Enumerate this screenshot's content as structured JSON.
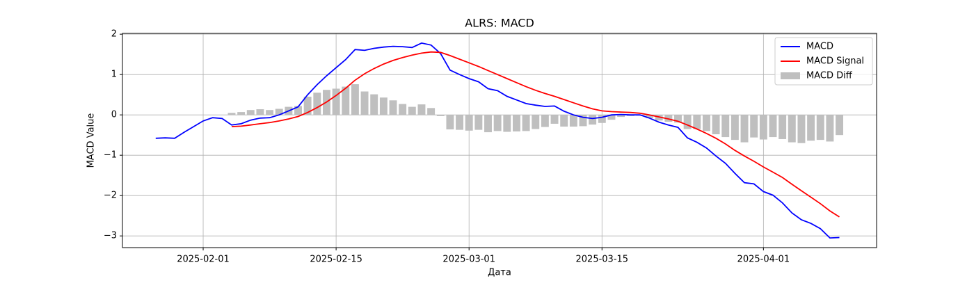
{
  "chart_data": {
    "type": "line",
    "title": "ALRS: MACD",
    "xlabel": "Дата",
    "ylabel": "MACD Value",
    "x": [
      "2025-01-27",
      "2025-01-28",
      "2025-01-29",
      "2025-01-30",
      "2025-01-31",
      "2025-02-01",
      "2025-02-02",
      "2025-02-03",
      "2025-02-04",
      "2025-02-05",
      "2025-02-06",
      "2025-02-07",
      "2025-02-08",
      "2025-02-09",
      "2025-02-10",
      "2025-02-11",
      "2025-02-12",
      "2025-02-13",
      "2025-02-14",
      "2025-02-15",
      "2025-02-16",
      "2025-02-17",
      "2025-02-18",
      "2025-02-19",
      "2025-02-20",
      "2025-02-21",
      "2025-02-22",
      "2025-02-23",
      "2025-02-24",
      "2025-02-25",
      "2025-02-26",
      "2025-02-27",
      "2025-02-28",
      "2025-03-01",
      "2025-03-02",
      "2025-03-03",
      "2025-03-04",
      "2025-03-05",
      "2025-03-06",
      "2025-03-07",
      "2025-03-08",
      "2025-03-09",
      "2025-03-10",
      "2025-03-11",
      "2025-03-12",
      "2025-03-13",
      "2025-03-14",
      "2025-03-15",
      "2025-03-16",
      "2025-03-17",
      "2025-03-18",
      "2025-03-19",
      "2025-03-20",
      "2025-03-21",
      "2025-03-22",
      "2025-03-23",
      "2025-03-24",
      "2025-03-25",
      "2025-03-26",
      "2025-03-27",
      "2025-03-28",
      "2025-03-29",
      "2025-03-30",
      "2025-03-31",
      "2025-04-01",
      "2025-04-02",
      "2025-04-03",
      "2025-04-04",
      "2025-04-05",
      "2025-04-06",
      "2025-04-07",
      "2025-04-08",
      "2025-04-09"
    ],
    "series": [
      {
        "name": "MACD",
        "type": "line",
        "color": "#0000ff",
        "values": [
          -0.58,
          -0.57,
          -0.58,
          -0.43,
          -0.29,
          -0.15,
          -0.07,
          -0.09,
          -0.25,
          -0.22,
          -0.13,
          -0.08,
          -0.07,
          0.0,
          0.1,
          0.2,
          0.5,
          0.75,
          0.97,
          1.17,
          1.37,
          1.62,
          1.6,
          1.65,
          1.68,
          1.7,
          1.69,
          1.67,
          1.78,
          1.73,
          1.52,
          1.11,
          1.0,
          0.9,
          0.82,
          0.65,
          0.6,
          0.46,
          0.37,
          0.28,
          0.24,
          0.21,
          0.22,
          0.09,
          0.0,
          -0.06,
          -0.09,
          -0.06,
          0.0,
          0.01,
          0.0,
          0.0,
          -0.08,
          -0.18,
          -0.25,
          -0.31,
          -0.57,
          -0.68,
          -0.82,
          -1.02,
          -1.2,
          -1.45,
          -1.68,
          -1.71,
          -1.9,
          -1.99,
          -2.18,
          -2.43,
          -2.6,
          -2.69,
          -2.82,
          -3.05,
          -3.04
        ]
      },
      {
        "name": "MACD Signal",
        "type": "line",
        "color": "#ff0000",
        "values": [
          null,
          null,
          null,
          null,
          null,
          null,
          null,
          null,
          -0.29,
          -0.28,
          -0.25,
          -0.22,
          -0.19,
          -0.15,
          -0.1,
          -0.04,
          0.06,
          0.18,
          0.32,
          0.48,
          0.66,
          0.86,
          1.02,
          1.15,
          1.26,
          1.35,
          1.42,
          1.48,
          1.53,
          1.56,
          1.55,
          1.47,
          1.38,
          1.29,
          1.2,
          1.1,
          1.0,
          0.9,
          0.8,
          0.7,
          0.61,
          0.53,
          0.46,
          0.38,
          0.3,
          0.22,
          0.15,
          0.1,
          0.08,
          0.07,
          0.06,
          0.04,
          0.0,
          -0.05,
          -0.1,
          -0.16,
          -0.25,
          -0.35,
          -0.46,
          -0.58,
          -0.72,
          -0.88,
          -1.02,
          -1.15,
          -1.29,
          -1.42,
          -1.55,
          -1.72,
          -1.88,
          -2.04,
          -2.2,
          -2.38,
          -2.53
        ]
      },
      {
        "name": "MACD Diff",
        "type": "bar",
        "color": "#bfbfbf",
        "values": [
          null,
          null,
          null,
          null,
          null,
          null,
          null,
          null,
          0.05,
          0.07,
          0.12,
          0.14,
          0.12,
          0.15,
          0.2,
          0.22,
          0.45,
          0.55,
          0.62,
          0.65,
          0.7,
          0.76,
          0.58,
          0.51,
          0.43,
          0.36,
          0.27,
          0.2,
          0.26,
          0.17,
          -0.03,
          -0.36,
          -0.37,
          -0.39,
          -0.37,
          -0.43,
          -0.4,
          -0.42,
          -0.41,
          -0.4,
          -0.35,
          -0.3,
          -0.22,
          -0.29,
          -0.29,
          -0.28,
          -0.24,
          -0.2,
          -0.12,
          -0.05,
          -0.03,
          -0.02,
          -0.08,
          -0.14,
          -0.17,
          -0.19,
          -0.35,
          -0.35,
          -0.4,
          -0.48,
          -0.55,
          -0.62,
          -0.68,
          -0.56,
          -0.61,
          -0.55,
          -0.6,
          -0.68,
          -0.7,
          -0.64,
          -0.62,
          -0.66,
          -0.5
        ]
      }
    ],
    "xlim": [
      "2025-01-23T12:00:00Z",
      "2025-04-12T22:00:00Z"
    ],
    "xticks": [
      "2025-02-01",
      "2025-02-15",
      "2025-03-01",
      "2025-03-15",
      "2025-04-01"
    ],
    "ylim": [
      -3.29,
      2.02
    ],
    "yticks": [
      {
        "value": -3,
        "label": "−3"
      },
      {
        "value": -2,
        "label": "−2"
      },
      {
        "value": -1,
        "label": "−1"
      },
      0,
      1,
      2
    ],
    "grid": true,
    "legend": "upper right"
  }
}
